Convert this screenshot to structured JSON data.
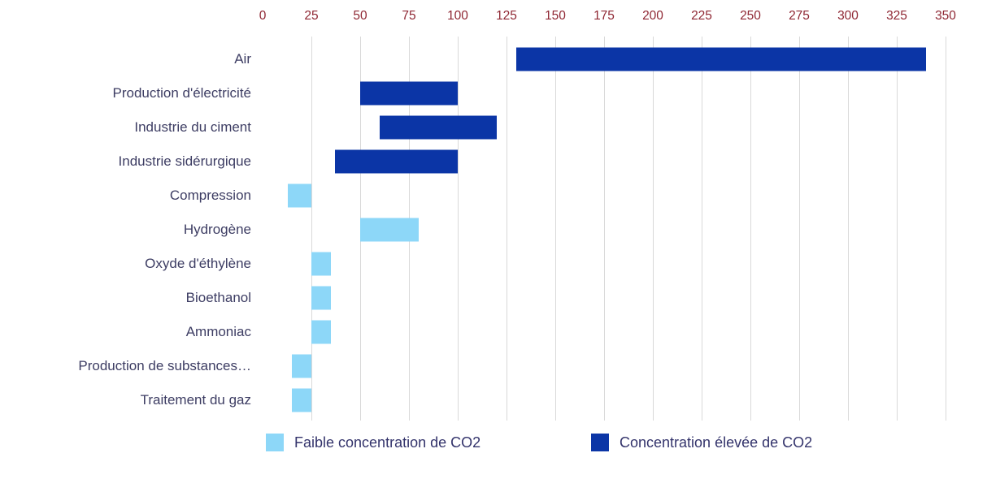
{
  "chart_data": {
    "type": "bar",
    "subtype": "horizontal-range",
    "title": "",
    "axis": {
      "min": 0,
      "max": 350,
      "step": 25,
      "position": "top"
    },
    "grid": true,
    "legend_position": "bottom",
    "series": [
      {
        "key": "low",
        "name": "Faible concentration de CO2",
        "color": "#8DD7F8"
      },
      {
        "key": "high",
        "name": "Concentration élevée de CO2",
        "color": "#0B35A6"
      }
    ],
    "bars": [
      {
        "category": "Air",
        "from": 130,
        "to": 340,
        "series": "high"
      },
      {
        "category": "Production d'électricité",
        "from": 50,
        "to": 100,
        "series": "high"
      },
      {
        "category": "Industrie du ciment",
        "from": 60,
        "to": 120,
        "series": "high"
      },
      {
        "category": "Industrie sidérurgique",
        "from": 37,
        "to": 100,
        "series": "high"
      },
      {
        "category": "Compression",
        "from": 13,
        "to": 25,
        "series": "low"
      },
      {
        "category": "Hydrogène",
        "from": 50,
        "to": 80,
        "series": "low"
      },
      {
        "category": "Oxyde d'éthylène",
        "from": 25,
        "to": 35,
        "series": "low"
      },
      {
        "category": "Bioethanol",
        "from": 25,
        "to": 35,
        "series": "low"
      },
      {
        "category": "Ammoniac",
        "from": 25,
        "to": 35,
        "series": "low"
      },
      {
        "category": "Production de substances…",
        "from": 15,
        "to": 25,
        "series": "low"
      },
      {
        "category": "Traitement du gaz",
        "from": 15,
        "to": 25,
        "series": "low"
      }
    ]
  },
  "colors": {
    "tick": "#8f2733",
    "category_label": "#3d3d63",
    "legend_text": "#33336b",
    "gridline": "#d9d9d9",
    "background": "#ffffff"
  }
}
